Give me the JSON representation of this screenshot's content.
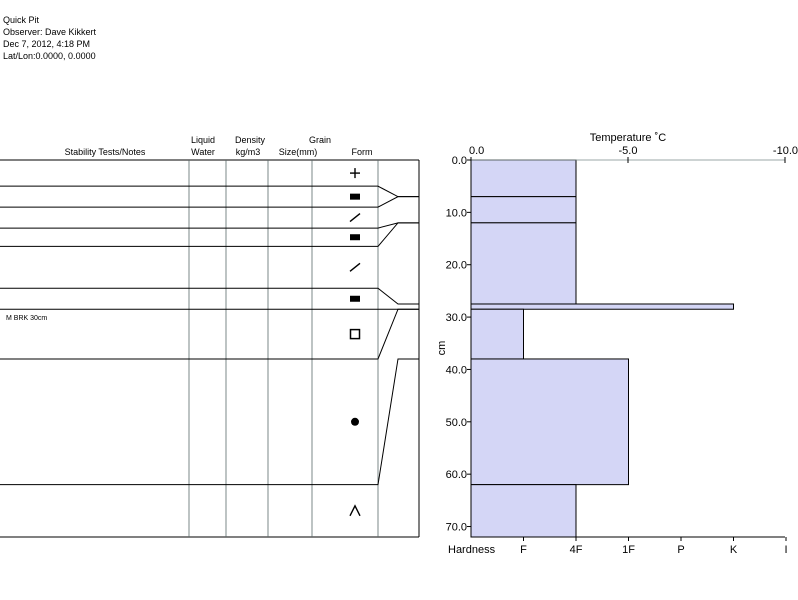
{
  "header": {
    "title": "Quick Pit",
    "observer": "Observer: Dave Kikkert",
    "date": "Dec 7, 2012, 4:18 PM",
    "latlon": "Lat/Lon:0.0000, 0.0000"
  },
  "table": {
    "headers": {
      "notes": "Stability Tests/Notes",
      "water": [
        "Liquid",
        "Water"
      ],
      "density": [
        "Density",
        "kg/m3"
      ],
      "grain": [
        "Grain",
        "Size(mm)"
      ],
      "form": "Form"
    },
    "notes": [
      {
        "depth": 30,
        "text": "M BRK 30cm"
      }
    ]
  },
  "chart_data": {
    "type": "snow-profile",
    "temperature_axis": {
      "title": "Temperature ˚C",
      "ticks": [
        {
          "value": 0,
          "label": "0.0"
        },
        {
          "value": -5,
          "label": "-5.0"
        },
        {
          "value": -10,
          "label": "-10.0"
        }
      ],
      "range": [
        0,
        -10
      ]
    },
    "depth_axis": {
      "label": "cm",
      "range": [
        0,
        72
      ],
      "ticks": [
        {
          "value": 0,
          "label": "0.0"
        },
        {
          "value": 10,
          "label": "10.0"
        },
        {
          "value": 20,
          "label": "20.0"
        },
        {
          "value": 30,
          "label": "30.0"
        },
        {
          "value": 40,
          "label": "40.0"
        },
        {
          "value": 50,
          "label": "50.0"
        },
        {
          "value": 60,
          "label": "60.0"
        },
        {
          "value": 70,
          "label": "70.0"
        }
      ]
    },
    "hardness_axis": {
      "label": "Hardness",
      "ticks": [
        "F",
        "4F",
        "1F",
        "P",
        "K",
        "I"
      ]
    },
    "layers": [
      {
        "top": 0,
        "bottom": 7,
        "hardness": 2,
        "form": "plus"
      },
      {
        "top": 7,
        "bottom": 12,
        "hardness": 2,
        "form": "rect"
      },
      {
        "top": 12,
        "bottom": 27.5,
        "hardness": 2,
        "form": "slash"
      },
      {
        "top": 27.5,
        "bottom": 28.5,
        "hardness": 5,
        "form": "rect"
      },
      {
        "top": 28.5,
        "bottom": 38,
        "hardness": 1,
        "form": "square"
      },
      {
        "top": 38,
        "bottom": 62,
        "hardness": 3,
        "form": "dot"
      },
      {
        "top": 62,
        "bottom": 72,
        "hardness": 2,
        "form": "caret"
      }
    ],
    "table_layers": [
      {
        "top": 0,
        "bottom": 5,
        "form": "plus",
        "depth_link": 7
      },
      {
        "top": 5,
        "bottom": 9,
        "form": "rect",
        "depth_link": 7
      },
      {
        "top": 9,
        "bottom": 13,
        "form": "slash",
        "depth_link": 12
      },
      {
        "top": 13,
        "bottom": 16.5,
        "form": "rect",
        "depth_link": 12
      },
      {
        "top": 16.5,
        "bottom": 24.5,
        "form": "slash",
        "depth_link": 27.5
      },
      {
        "top": 24.5,
        "bottom": 28.5,
        "form": "rect",
        "depth_link": 28.5
      },
      {
        "top": 28.5,
        "bottom": 38,
        "form": "square",
        "depth_link": 28.5
      },
      {
        "top": 38,
        "bottom": 62,
        "form": "dot",
        "depth_link": 38
      },
      {
        "top": 62,
        "bottom": 72,
        "form": "caret",
        "depth_link": 62
      }
    ],
    "colors": {
      "fill": "#d4d6f6",
      "stroke": "#000000"
    }
  }
}
